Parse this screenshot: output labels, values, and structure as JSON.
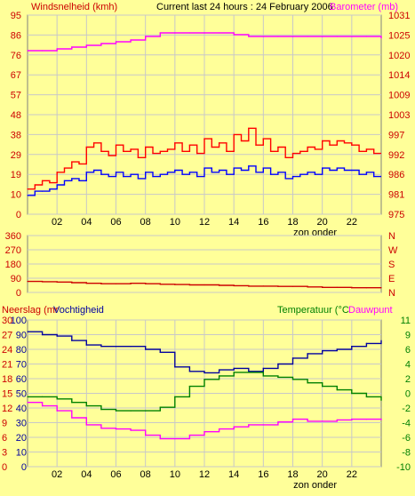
{
  "header": {
    "left": "Windsnelheid (kmh)",
    "center": "Current last 24 hours : 24 February 2006",
    "right": "Barometer (mb)"
  },
  "colors": {
    "background": "#ffff99",
    "grid": "#c8c8c8",
    "wind_gust": "#ff0000",
    "wind_avg": "#0000ff",
    "barometer": "#ff00ff",
    "direction": "#cc0000",
    "humidity": "#0000a0",
    "temperature": "#008000",
    "dewpoint": "#ff00ff",
    "left_labels": "#cc0000",
    "bottom_left_labels": "#cc0000",
    "right_labels_bottom": "#008000",
    "right_labels_top": "#cc0000"
  },
  "chart_data": [
    {
      "type": "line",
      "id": "wind_pressure",
      "x_range": [
        0,
        24
      ],
      "xticks": [
        "02",
        "04",
        "06",
        "08",
        "10",
        "12",
        "14",
        "16",
        "18",
        "20",
        "22"
      ],
      "xtick_values": [
        2,
        4,
        6,
        8,
        10,
        12,
        14,
        16,
        18,
        20,
        22
      ],
      "x_annotation": "zon onder",
      "x_annotation_at": 19,
      "left_ticks": [
        "95",
        "86",
        "76",
        "67",
        "57",
        "48",
        "38",
        "29",
        "19",
        "10",
        "0"
      ],
      "left_range": [
        0,
        95
      ],
      "right_ticks": [
        "1031",
        "1025",
        "1020",
        "1014",
        "1009",
        "1003",
        "997",
        "992",
        "986",
        "981",
        "975"
      ],
      "right_range": [
        975,
        1031
      ],
      "grid": true,
      "series": [
        {
          "axis": "right",
          "color_key": "barometer",
          "x": [
            0,
            1,
            2,
            3,
            4,
            5,
            6,
            7,
            8,
            9,
            10,
            11,
            12,
            13,
            14,
            15,
            16,
            17,
            18,
            19,
            20,
            21,
            22,
            23,
            24
          ],
          "values": [
            1021,
            1021,
            1021.5,
            1022,
            1022.5,
            1023,
            1023.5,
            1024,
            1025,
            1026,
            1026,
            1026,
            1026,
            1026,
            1025.5,
            1025,
            1025,
            1025,
            1025,
            1025,
            1025,
            1025,
            1025,
            1025,
            1024.5
          ]
        },
        {
          "axis": "left",
          "color_key": "wind_gust",
          "x": [
            0,
            0.5,
            1,
            1.5,
            2,
            2.5,
            3,
            3.5,
            4,
            4.5,
            5,
            5.5,
            6,
            6.5,
            7,
            7.5,
            8,
            8.5,
            9,
            9.5,
            10,
            10.5,
            11,
            11.5,
            12,
            12.5,
            13,
            13.5,
            14,
            14.5,
            15,
            15.5,
            16,
            16.5,
            17,
            17.5,
            18,
            18.5,
            19,
            19.5,
            20,
            20.5,
            21,
            21.5,
            22,
            22.5,
            23,
            23.5
          ],
          "values": [
            12,
            14,
            16,
            15,
            20,
            22,
            25,
            24,
            32,
            34,
            30,
            28,
            33,
            30,
            31,
            27,
            32,
            29,
            30,
            31,
            34,
            30,
            33,
            29,
            36,
            32,
            34,
            30,
            38,
            35,
            41,
            33,
            36,
            30,
            32,
            27,
            29,
            30,
            32,
            31,
            35,
            33,
            35,
            34,
            33,
            30,
            31,
            29
          ]
        },
        {
          "axis": "left",
          "color_key": "wind_avg",
          "x": [
            0,
            0.5,
            1,
            1.5,
            2,
            2.5,
            3,
            3.5,
            4,
            4.5,
            5,
            5.5,
            6,
            6.5,
            7,
            7.5,
            8,
            8.5,
            9,
            9.5,
            10,
            10.5,
            11,
            11.5,
            12,
            12.5,
            13,
            13.5,
            14,
            14.5,
            15,
            15.5,
            16,
            16.5,
            17,
            17.5,
            18,
            18.5,
            19,
            19.5,
            20,
            20.5,
            21,
            21.5,
            22,
            22.5,
            23,
            23.5
          ],
          "values": [
            9,
            11,
            11,
            12,
            14,
            16,
            17,
            16,
            20,
            21,
            19,
            18,
            20,
            18,
            19,
            17,
            20,
            18,
            19,
            20,
            21,
            19,
            20,
            18,
            22,
            20,
            21,
            19,
            22,
            21,
            23,
            20,
            22,
            19,
            20,
            17,
            18,
            19,
            20,
            19,
            22,
            21,
            22,
            21,
            21,
            19,
            20,
            18
          ]
        }
      ]
    },
    {
      "type": "line",
      "id": "wind_direction",
      "x_range": [
        0,
        24
      ],
      "left_ticks": [
        "360",
        "270",
        "180",
        "90",
        "0"
      ],
      "left_range": [
        0,
        360
      ],
      "right_ticks": [
        "N",
        "W",
        "S",
        "E",
        "N"
      ],
      "grid": true,
      "series": [
        {
          "axis": "left",
          "color_key": "direction",
          "x": [
            0,
            1,
            2,
            3,
            4,
            5,
            6,
            7,
            8,
            9,
            10,
            11,
            12,
            13,
            14,
            15,
            16,
            17,
            18,
            19,
            20,
            21,
            22,
            23,
            24
          ],
          "values": [
            70,
            68,
            66,
            62,
            58,
            55,
            55,
            58,
            55,
            52,
            50,
            48,
            48,
            45,
            43,
            40,
            40,
            38,
            38,
            35,
            32,
            32,
            30,
            30,
            30
          ]
        }
      ]
    },
    {
      "type": "line",
      "id": "humidity_temperature",
      "x_range": [
        0,
        24
      ],
      "xticks": [
        "02",
        "04",
        "06",
        "08",
        "10",
        "12",
        "14",
        "16",
        "18",
        "20",
        "22"
      ],
      "xtick_values": [
        2,
        4,
        6,
        8,
        10,
        12,
        14,
        16,
        18,
        20,
        22
      ],
      "x_annotation": "zon onder",
      "x_annotation_at": 19,
      "left_title_1": "Neerslag (mr",
      "left_title_2": "Vochtigheid",
      "right_title_1": "Temperatuur (°C",
      "right_title_2": "Dauwpunt",
      "left_ticks_outer": [
        "30",
        "27",
        "24",
        "21",
        "18",
        "15",
        "12",
        "9",
        "6",
        "3",
        "0"
      ],
      "left_ticks_inner": [
        "100",
        "90",
        "80",
        "70",
        "60",
        "50",
        "40",
        "30",
        "20",
        "10",
        "0"
      ],
      "left_range": [
        0,
        100
      ],
      "right_ticks": [
        "11",
        "9",
        "6",
        "4",
        "2",
        "0",
        "-2",
        "-4",
        "-6",
        "-8",
        "-10"
      ],
      "right_range": [
        -10,
        11
      ],
      "grid": true,
      "series": [
        {
          "axis": "left",
          "color_key": "humidity",
          "x": [
            0,
            1,
            2,
            3,
            4,
            5,
            6,
            7,
            8,
            9,
            10,
            11,
            12,
            13,
            14,
            15,
            16,
            17,
            18,
            19,
            20,
            21,
            22,
            23,
            24
          ],
          "values": [
            92,
            90,
            89,
            86,
            83,
            82,
            82,
            82,
            80,
            78,
            68,
            65,
            64,
            66,
            67,
            65,
            67,
            70,
            74,
            77,
            79,
            80,
            82,
            84,
            86
          ]
        },
        {
          "axis": "right",
          "color_key": "temperature",
          "x": [
            0,
            1,
            2,
            3,
            4,
            5,
            6,
            7,
            8,
            9,
            10,
            11,
            12,
            13,
            14,
            15,
            16,
            17,
            18,
            19,
            20,
            21,
            22,
            23,
            24
          ],
          "values": [
            0,
            0,
            -0.3,
            -0.8,
            -1.3,
            -1.8,
            -2,
            -2,
            -2,
            -1.5,
            0,
            1.5,
            2.5,
            3,
            3.5,
            3.5,
            3,
            2.8,
            2.5,
            2,
            1.5,
            1,
            0.5,
            0,
            -0.5
          ]
        },
        {
          "axis": "right",
          "color_key": "dewpoint",
          "x": [
            0,
            1,
            2,
            3,
            4,
            5,
            6,
            7,
            8,
            9,
            10,
            11,
            12,
            13,
            14,
            15,
            16,
            17,
            18,
            19,
            20,
            21,
            22,
            23,
            24
          ],
          "values": [
            -0.8,
            -1.3,
            -2,
            -3,
            -4,
            -4.5,
            -4.6,
            -4.8,
            -5.5,
            -6,
            -6,
            -5.5,
            -5,
            -4.6,
            -4.3,
            -4,
            -4,
            -3.6,
            -3.2,
            -3.5,
            -3.5,
            -3.3,
            -3.2,
            -3.2,
            -3.3
          ]
        }
      ]
    }
  ]
}
